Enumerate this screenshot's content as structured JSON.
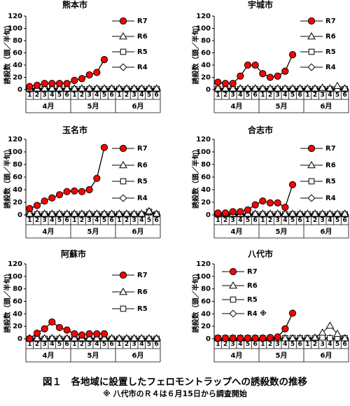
{
  "figure": {
    "caption": "図１　各地域に設置したフェロモントラップへの誘殺数の推移",
    "note": "※ 八代市のＲ４は６月15日から調査開始"
  },
  "chart_data": [
    {
      "type": "line",
      "title": "熊本市",
      "ylabel": "誘殺数（頭／半旬）",
      "ylim": [
        0,
        120
      ],
      "yticks": [
        0,
        20,
        40,
        60,
        80,
        100,
        120
      ],
      "x": [
        "1",
        "2",
        "3",
        "4",
        "5",
        "6",
        "1",
        "2",
        "3",
        "4",
        "5",
        "6",
        "1",
        "2",
        "3",
        "4",
        "5",
        "6"
      ],
      "month_labels": [
        "4月",
        "5月",
        "6月"
      ],
      "legend_position": "right",
      "series": [
        {
          "name": "R7",
          "marker": "circle-filled",
          "color": "#ff0000",
          "values": [
            5,
            7,
            10,
            10,
            10,
            10,
            15,
            18,
            24,
            28,
            49,
            null,
            null,
            null,
            null,
            null,
            null,
            null
          ]
        },
        {
          "name": "R6",
          "marker": "triangle",
          "color": "#000000",
          "values": [
            2,
            2,
            2,
            2,
            2,
            2,
            2,
            2,
            2,
            2,
            2,
            2,
            2,
            2,
            2,
            2,
            2,
            2
          ]
        },
        {
          "name": "R5",
          "marker": "square",
          "color": "#000000",
          "values": [
            1,
            1,
            1,
            1,
            1,
            1,
            1,
            1,
            1,
            1,
            1,
            1,
            1,
            1,
            1,
            1,
            1,
            1
          ]
        },
        {
          "name": "R4",
          "marker": "diamond",
          "color": "#000000",
          "values": [
            1,
            1,
            1,
            1,
            1,
            1,
            1,
            1,
            1,
            1,
            1,
            1,
            1,
            1,
            1,
            1,
            1,
            1
          ]
        }
      ]
    },
    {
      "type": "line",
      "title": "宇城市",
      "ylabel": "誘殺数（頭／半旬）",
      "ylim": [
        0,
        120
      ],
      "yticks": [
        0,
        20,
        40,
        60,
        80,
        100,
        120
      ],
      "x": [
        "1",
        "2",
        "3",
        "4",
        "5",
        "6",
        "1",
        "2",
        "3",
        "4",
        "5",
        "6",
        "1",
        "2",
        "3",
        "4",
        "5",
        "6"
      ],
      "month_labels": [
        "4月",
        "5月",
        "6月"
      ],
      "legend_position": "right",
      "series": [
        {
          "name": "R7",
          "marker": "circle-filled",
          "color": "#ff0000",
          "values": [
            12,
            10,
            10,
            22,
            40,
            40,
            26,
            20,
            22,
            30,
            57,
            null,
            null,
            null,
            null,
            null,
            null,
            null
          ]
        },
        {
          "name": "R6",
          "marker": "triangle",
          "color": "#000000",
          "values": [
            2,
            2,
            2,
            2,
            2,
            2,
            2,
            2,
            2,
            2,
            2,
            2,
            2,
            2,
            3,
            2,
            6,
            2
          ]
        },
        {
          "name": "R5",
          "marker": "square",
          "color": "#000000",
          "values": [
            1,
            1,
            1,
            1,
            1,
            1,
            1,
            1,
            1,
            1,
            1,
            1,
            1,
            1,
            1,
            1,
            1,
            1
          ]
        },
        {
          "name": "R4",
          "marker": "diamond",
          "color": "#000000",
          "values": [
            1,
            1,
            1,
            1,
            1,
            1,
            1,
            1,
            1,
            1,
            1,
            1,
            1,
            1,
            1,
            1,
            1,
            1
          ]
        }
      ]
    },
    {
      "type": "line",
      "title": "玉名市",
      "ylabel": "誘殺数（頭／半旬）",
      "ylim": [
        0,
        120
      ],
      "yticks": [
        0,
        20,
        40,
        60,
        80,
        100,
        120
      ],
      "x": [
        "1",
        "2",
        "3",
        "4",
        "5",
        "6",
        "1",
        "2",
        "3",
        "4",
        "5",
        "6",
        "1",
        "2",
        "3",
        "4",
        "5",
        "6"
      ],
      "month_labels": [
        "4月",
        "5月",
        "6月"
      ],
      "legend_position": "right",
      "series": [
        {
          "name": "R7",
          "marker": "circle-filled",
          "color": "#ff0000",
          "values": [
            10,
            15,
            22,
            27,
            32,
            37,
            38,
            37,
            40,
            58,
            107,
            null,
            null,
            null,
            null,
            null,
            null,
            null
          ]
        },
        {
          "name": "R6",
          "marker": "triangle",
          "color": "#000000",
          "values": [
            2,
            2,
            2,
            2,
            2,
            2,
            2,
            2,
            2,
            2,
            2,
            2,
            2,
            2,
            2,
            2,
            6,
            2
          ]
        },
        {
          "name": "R5",
          "marker": "square",
          "color": "#000000",
          "values": [
            1,
            1,
            1,
            1,
            1,
            1,
            1,
            1,
            1,
            1,
            1,
            1,
            1,
            1,
            1,
            1,
            5,
            1
          ]
        },
        {
          "name": "R4",
          "marker": "diamond",
          "color": "#000000",
          "values": [
            1,
            1,
            1,
            1,
            1,
            1,
            1,
            1,
            1,
            1,
            1,
            1,
            1,
            1,
            1,
            1,
            3,
            1
          ]
        }
      ]
    },
    {
      "type": "line",
      "title": "合志市",
      "ylabel": "誘殺数（頭／半旬）",
      "ylim": [
        0,
        120
      ],
      "yticks": [
        0,
        20,
        40,
        60,
        80,
        100,
        120
      ],
      "x": [
        "1",
        "2",
        "3",
        "4",
        "5",
        "6",
        "1",
        "2",
        "3",
        "4",
        "5",
        "6",
        "1",
        "2",
        "3",
        "4",
        "5",
        "6"
      ],
      "month_labels": [
        "4月",
        "5月",
        "6月"
      ],
      "legend_position": "right",
      "series": [
        {
          "name": "R7",
          "marker": "circle-filled",
          "color": "#ff0000",
          "values": [
            3,
            3,
            5,
            5,
            8,
            16,
            22,
            19,
            19,
            12,
            48,
            null,
            null,
            null,
            null,
            null,
            null,
            null
          ]
        },
        {
          "name": "R6",
          "marker": "triangle",
          "color": "#000000",
          "values": [
            2,
            2,
            2,
            2,
            2,
            2,
            2,
            2,
            2,
            2,
            2,
            2,
            2,
            2,
            2,
            2,
            2,
            2
          ]
        },
        {
          "name": "R5",
          "marker": "square",
          "color": "#000000",
          "values": [
            1,
            1,
            1,
            1,
            1,
            1,
            1,
            1,
            1,
            1,
            1,
            1,
            1,
            1,
            1,
            1,
            1,
            1
          ]
        },
        {
          "name": "R4",
          "marker": "diamond",
          "color": "#000000",
          "values": [
            1,
            1,
            1,
            1,
            1,
            1,
            1,
            1,
            1,
            1,
            1,
            1,
            1,
            1,
            1,
            1,
            1,
            1
          ]
        }
      ]
    },
    {
      "type": "line",
      "title": "阿蘇市",
      "ylabel": "誘殺数（頭／半旬）",
      "ylim": [
        0,
        120
      ],
      "yticks": [
        0,
        20,
        40,
        60,
        80,
        100,
        120
      ],
      "x": [
        "1",
        "2",
        "3",
        "4",
        "5",
        "6",
        "1",
        "2",
        "3",
        "4",
        "5",
        "6",
        "1",
        "2",
        "3",
        "4",
        "5",
        "6"
      ],
      "month_labels": [
        "4月",
        "5月",
        "6月"
      ],
      "legend_position": "right",
      "series": [
        {
          "name": "R7",
          "marker": "circle-filled",
          "color": "#ff0000",
          "values": [
            0,
            9,
            16,
            27,
            18,
            14,
            8,
            6,
            8,
            8,
            8,
            null,
            null,
            null,
            null,
            null,
            null,
            null
          ]
        },
        {
          "name": "R6",
          "marker": "triangle",
          "color": "#000000",
          "values": [
            1,
            1,
            1,
            1,
            1,
            1,
            1,
            1,
            1,
            1,
            1,
            1,
            1,
            1,
            1,
            1,
            1,
            1
          ]
        },
        {
          "name": "R5",
          "marker": "square",
          "color": "#000000",
          "values": [
            0,
            0,
            0,
            0,
            0,
            0,
            0,
            0,
            0,
            0,
            0,
            0,
            0,
            0,
            0,
            0,
            0,
            0
          ]
        }
      ]
    },
    {
      "type": "line",
      "title": "八代市",
      "ylabel": "誘殺数（頭／半旬）",
      "ylim": [
        0,
        120
      ],
      "yticks": [
        0,
        20,
        40,
        60,
        80,
        100,
        120
      ],
      "x": [
        "1",
        "2",
        "3",
        "4",
        "5",
        "6",
        "1",
        "2",
        "3",
        "4",
        "5",
        "6",
        "1",
        "2",
        "3",
        "4",
        "5",
        "6"
      ],
      "month_labels": [
        "4月",
        "5月",
        "6月"
      ],
      "legend_position": "left",
      "series": [
        {
          "name": "R7",
          "marker": "circle-filled",
          "color": "#ff0000",
          "values": [
            1,
            1,
            1,
            1,
            1,
            1,
            1,
            2,
            3,
            16,
            41,
            null,
            null,
            null,
            null,
            null,
            null,
            null
          ]
        },
        {
          "name": "R6",
          "marker": "triangle",
          "color": "#000000",
          "values": [
            1,
            1,
            1,
            1,
            1,
            1,
            1,
            1,
            1,
            1,
            1,
            1,
            1,
            2,
            10,
            21,
            8,
            1
          ]
        },
        {
          "name": "R5",
          "marker": "square",
          "color": "#000000",
          "values": [
            1,
            1,
            1,
            1,
            1,
            1,
            1,
            1,
            1,
            1,
            1,
            1,
            1,
            1,
            2,
            1,
            1,
            1
          ]
        },
        {
          "name": "R4 ※",
          "marker": "diamond",
          "color": "#000000",
          "values": [
            null,
            null,
            null,
            null,
            null,
            null,
            null,
            null,
            null,
            null,
            null,
            null,
            null,
            null,
            null,
            1,
            1,
            1
          ]
        }
      ]
    }
  ]
}
